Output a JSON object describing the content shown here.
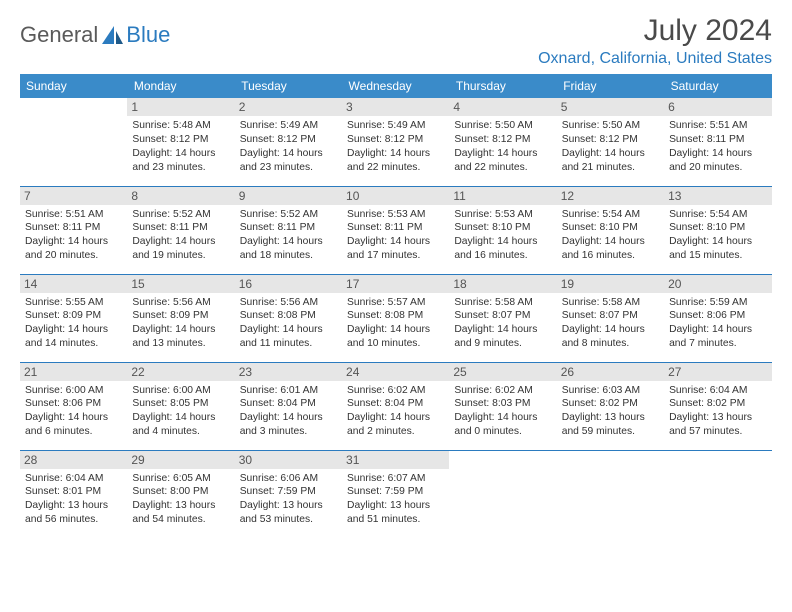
{
  "logo": {
    "text1": "General",
    "text2": "Blue"
  },
  "title": "July 2024",
  "location": "Oxnard, California, United States",
  "colors": {
    "header_bg": "#3a8bc9",
    "accent": "#2b7bbf",
    "daynum_bg": "#e6e6e6",
    "text": "#333333"
  },
  "typography": {
    "title_fontsize": 30,
    "location_fontsize": 16,
    "header_fontsize": 12,
    "cell_fontsize": 10.3
  },
  "weekdays": [
    "Sunday",
    "Monday",
    "Tuesday",
    "Wednesday",
    "Thursday",
    "Friday",
    "Saturday"
  ],
  "weeks": [
    [
      null,
      {
        "d": "1",
        "sr": "5:48 AM",
        "ss": "8:12 PM",
        "dl": "14 hours and 23 minutes."
      },
      {
        "d": "2",
        "sr": "5:49 AM",
        "ss": "8:12 PM",
        "dl": "14 hours and 23 minutes."
      },
      {
        "d": "3",
        "sr": "5:49 AM",
        "ss": "8:12 PM",
        "dl": "14 hours and 22 minutes."
      },
      {
        "d": "4",
        "sr": "5:50 AM",
        "ss": "8:12 PM",
        "dl": "14 hours and 22 minutes."
      },
      {
        "d": "5",
        "sr": "5:50 AM",
        "ss": "8:12 PM",
        "dl": "14 hours and 21 minutes."
      },
      {
        "d": "6",
        "sr": "5:51 AM",
        "ss": "8:11 PM",
        "dl": "14 hours and 20 minutes."
      }
    ],
    [
      {
        "d": "7",
        "sr": "5:51 AM",
        "ss": "8:11 PM",
        "dl": "14 hours and 20 minutes."
      },
      {
        "d": "8",
        "sr": "5:52 AM",
        "ss": "8:11 PM",
        "dl": "14 hours and 19 minutes."
      },
      {
        "d": "9",
        "sr": "5:52 AM",
        "ss": "8:11 PM",
        "dl": "14 hours and 18 minutes."
      },
      {
        "d": "10",
        "sr": "5:53 AM",
        "ss": "8:11 PM",
        "dl": "14 hours and 17 minutes."
      },
      {
        "d": "11",
        "sr": "5:53 AM",
        "ss": "8:10 PM",
        "dl": "14 hours and 16 minutes."
      },
      {
        "d": "12",
        "sr": "5:54 AM",
        "ss": "8:10 PM",
        "dl": "14 hours and 16 minutes."
      },
      {
        "d": "13",
        "sr": "5:54 AM",
        "ss": "8:10 PM",
        "dl": "14 hours and 15 minutes."
      }
    ],
    [
      {
        "d": "14",
        "sr": "5:55 AM",
        "ss": "8:09 PM",
        "dl": "14 hours and 14 minutes."
      },
      {
        "d": "15",
        "sr": "5:56 AM",
        "ss": "8:09 PM",
        "dl": "14 hours and 13 minutes."
      },
      {
        "d": "16",
        "sr": "5:56 AM",
        "ss": "8:08 PM",
        "dl": "14 hours and 11 minutes."
      },
      {
        "d": "17",
        "sr": "5:57 AM",
        "ss": "8:08 PM",
        "dl": "14 hours and 10 minutes."
      },
      {
        "d": "18",
        "sr": "5:58 AM",
        "ss": "8:07 PM",
        "dl": "14 hours and 9 minutes."
      },
      {
        "d": "19",
        "sr": "5:58 AM",
        "ss": "8:07 PM",
        "dl": "14 hours and 8 minutes."
      },
      {
        "d": "20",
        "sr": "5:59 AM",
        "ss": "8:06 PM",
        "dl": "14 hours and 7 minutes."
      }
    ],
    [
      {
        "d": "21",
        "sr": "6:00 AM",
        "ss": "8:06 PM",
        "dl": "14 hours and 6 minutes."
      },
      {
        "d": "22",
        "sr": "6:00 AM",
        "ss": "8:05 PM",
        "dl": "14 hours and 4 minutes."
      },
      {
        "d": "23",
        "sr": "6:01 AM",
        "ss": "8:04 PM",
        "dl": "14 hours and 3 minutes."
      },
      {
        "d": "24",
        "sr": "6:02 AM",
        "ss": "8:04 PM",
        "dl": "14 hours and 2 minutes."
      },
      {
        "d": "25",
        "sr": "6:02 AM",
        "ss": "8:03 PM",
        "dl": "14 hours and 0 minutes."
      },
      {
        "d": "26",
        "sr": "6:03 AM",
        "ss": "8:02 PM",
        "dl": "13 hours and 59 minutes."
      },
      {
        "d": "27",
        "sr": "6:04 AM",
        "ss": "8:02 PM",
        "dl": "13 hours and 57 minutes."
      }
    ],
    [
      {
        "d": "28",
        "sr": "6:04 AM",
        "ss": "8:01 PM",
        "dl": "13 hours and 56 minutes."
      },
      {
        "d": "29",
        "sr": "6:05 AM",
        "ss": "8:00 PM",
        "dl": "13 hours and 54 minutes."
      },
      {
        "d": "30",
        "sr": "6:06 AM",
        "ss": "7:59 PM",
        "dl": "13 hours and 53 minutes."
      },
      {
        "d": "31",
        "sr": "6:07 AM",
        "ss": "7:59 PM",
        "dl": "13 hours and 51 minutes."
      },
      null,
      null,
      null
    ]
  ],
  "labels": {
    "sunrise": "Sunrise:",
    "sunset": "Sunset:",
    "daylight": "Daylight:"
  }
}
